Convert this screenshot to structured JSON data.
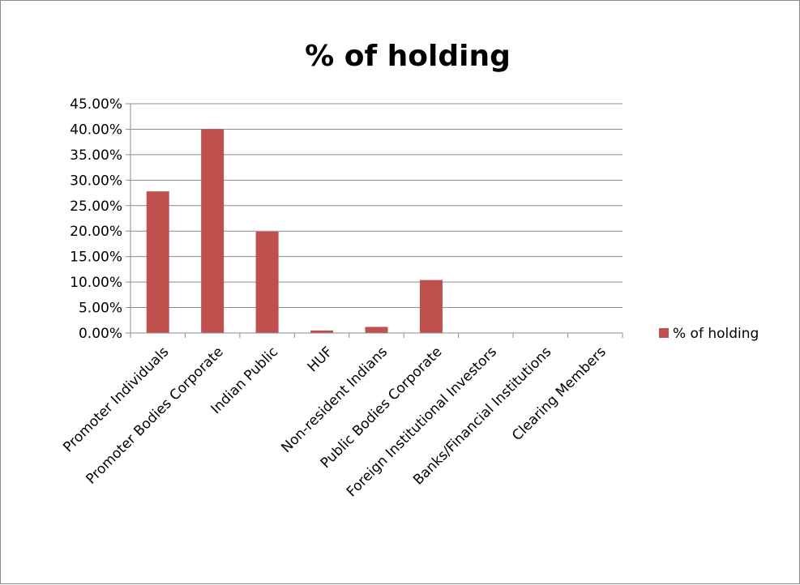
{
  "chart_data": {
    "type": "bar",
    "title": "% of holding",
    "xlabel": "",
    "ylabel": "",
    "categories": [
      "Promoter Individuals",
      "Promoter Bodies Corporate",
      "Indian Public",
      "HUF",
      "Non-resident Indians",
      "Public Bodies Corporate",
      "Foreign Institutional  Investors",
      "Banks/Financial Institutions",
      "Clearing Members"
    ],
    "series": [
      {
        "name": "% of holding",
        "color": "#c0504d",
        "values": [
          27.8,
          40.0,
          19.9,
          0.5,
          1.2,
          10.4,
          0.0,
          0.0,
          0.0
        ]
      }
    ],
    "ylim": [
      0,
      45
    ],
    "yticks": [
      "0.00%",
      "5.00%",
      "10.00%",
      "15.00%",
      "20.00%",
      "25.00%",
      "30.00%",
      "35.00%",
      "40.00%",
      "45.00%"
    ],
    "grid": true,
    "legend_position": "right"
  }
}
